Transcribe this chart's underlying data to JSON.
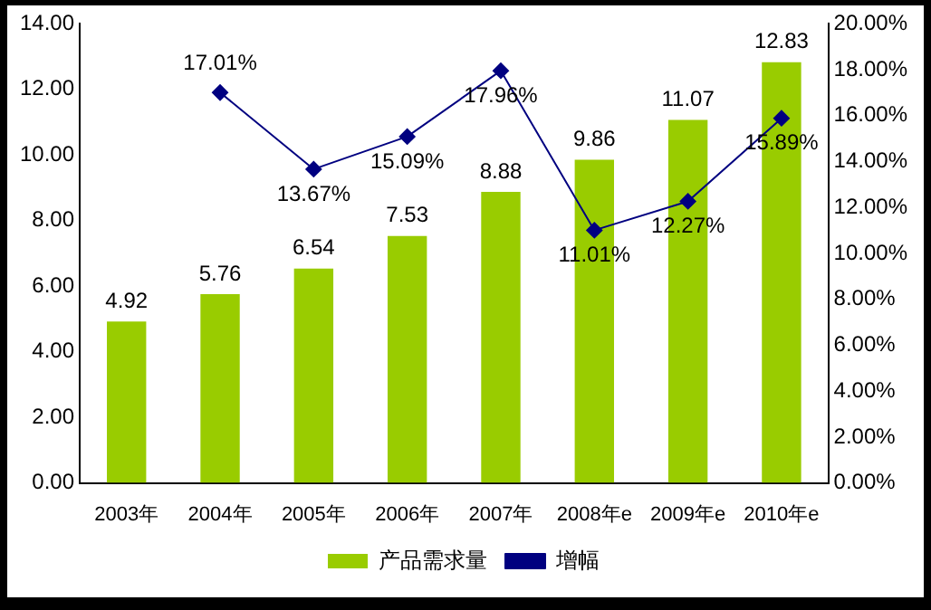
{
  "chart_data": {
    "type": "bar",
    "categories": [
      "2003年",
      "2004年",
      "2005年",
      "2006年",
      "2007年",
      "2008年e",
      "2009年e",
      "2010年e"
    ],
    "series": [
      {
        "name": "产品需求量",
        "color": "#99cc00",
        "values": [
          4.92,
          5.76,
          6.54,
          7.53,
          8.88,
          9.86,
          11.07,
          12.83
        ],
        "value_labels": [
          "4.92",
          "5.76",
          "6.54",
          "7.53",
          "8.88",
          "9.86",
          "11.07",
          "12.83"
        ]
      },
      {
        "name": "增幅",
        "type": "line",
        "axis": "y2",
        "color": "#000080",
        "marker": "diamond",
        "values": [
          null,
          17.01,
          13.67,
          15.09,
          17.96,
          11.01,
          12.27,
          15.89
        ],
        "value_labels": [
          null,
          "17.01%",
          "13.67%",
          "15.09%",
          "17.96%",
          "11.01%",
          "12.27%",
          "15.89%"
        ]
      }
    ],
    "ylim": [
      0,
      14
    ],
    "yticks": [
      {
        "value": 0,
        "label": "0.00"
      },
      {
        "value": 2,
        "label": "2.00"
      },
      {
        "value": 4,
        "label": "4.00"
      },
      {
        "value": 6,
        "label": "6.00"
      },
      {
        "value": 8,
        "label": "8.00"
      },
      {
        "value": 10,
        "label": "10.00"
      },
      {
        "value": 12,
        "label": "12.00"
      },
      {
        "value": 14,
        "label": "14.00"
      }
    ],
    "y2lim": [
      0,
      20
    ],
    "y2ticks": [
      {
        "value": 0,
        "label": "0.00%"
      },
      {
        "value": 2,
        "label": "2.00%"
      },
      {
        "value": 4,
        "label": "4.00%"
      },
      {
        "value": 6,
        "label": "6.00%"
      },
      {
        "value": 8,
        "label": "8.00%"
      },
      {
        "value": 10,
        "label": "10.00%"
      },
      {
        "value": 12,
        "label": "12.00%"
      },
      {
        "value": 14,
        "label": "14.00%"
      },
      {
        "value": 16,
        "label": "16.00%"
      },
      {
        "value": 18,
        "label": "18.00%"
      },
      {
        "value": 20,
        "label": "20.00%"
      }
    ],
    "grid": false,
    "legend": "bottom"
  }
}
